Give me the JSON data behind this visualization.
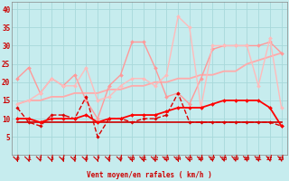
{
  "xlabel": "Vent moyen/en rafales ( km/h )",
  "xlim_min": -0.5,
  "xlim_max": 23.5,
  "ylim_min": 0,
  "ylim_max": 42,
  "yticks": [
    5,
    10,
    15,
    20,
    25,
    30,
    35,
    40
  ],
  "xticks": [
    0,
    1,
    2,
    3,
    4,
    5,
    6,
    7,
    8,
    9,
    10,
    11,
    12,
    13,
    14,
    15,
    16,
    17,
    18,
    19,
    20,
    21,
    22,
    23
  ],
  "background_color": "#c6ecee",
  "grid_color": "#a8d8da",
  "lines": [
    {
      "y": [
        14,
        15,
        15,
        16,
        16,
        17,
        17,
        17,
        18,
        18,
        19,
        19,
        20,
        20,
        21,
        21,
        22,
        22,
        23,
        23,
        25,
        26,
        27,
        28
      ],
      "color": "#ffaaaa",
      "lw": 1.3,
      "marker": null,
      "ms": 0,
      "ls": "-"
    },
    {
      "y": [
        21,
        24,
        17,
        21,
        19,
        22,
        15,
        10,
        19,
        22,
        31,
        31,
        24,
        16,
        17,
        14,
        21,
        29,
        30,
        30,
        30,
        30,
        31,
        28
      ],
      "color": "#ff9999",
      "lw": 1.0,
      "marker": "D",
      "ms": 2.0,
      "ls": "-"
    },
    {
      "y": [
        14,
        15,
        17,
        21,
        19,
        19,
        24,
        15,
        16,
        19,
        21,
        21,
        19,
        22,
        38,
        35,
        13,
        30,
        30,
        30,
        30,
        19,
        32,
        13
      ],
      "color": "#ffbbbb",
      "lw": 1.0,
      "marker": "D",
      "ms": 2.0,
      "ls": "-"
    },
    {
      "y": [
        9,
        9,
        9,
        9,
        9,
        9,
        9,
        9,
        9,
        9,
        9,
        9,
        9,
        9,
        9,
        9,
        9,
        9,
        9,
        9,
        9,
        9,
        9,
        9
      ],
      "color": "#cc0000",
      "lw": 1.2,
      "marker": null,
      "ms": 0,
      "ls": "-"
    },
    {
      "y": [
        13,
        9,
        8,
        11,
        11,
        10,
        16,
        5,
        10,
        10,
        9,
        10,
        10,
        11,
        17,
        9,
        9,
        9,
        9,
        9,
        9,
        9,
        9,
        8
      ],
      "color": "#dd0000",
      "lw": 1.0,
      "marker": "D",
      "ms": 1.8,
      "ls": "--"
    },
    {
      "y": [
        10,
        10,
        9,
        10,
        10,
        10,
        11,
        9,
        10,
        10,
        11,
        11,
        11,
        12,
        13,
        13,
        13,
        14,
        15,
        15,
        15,
        15,
        13,
        8
      ],
      "color": "#ff0000",
      "lw": 1.3,
      "marker": "D",
      "ms": 2.0,
      "ls": "-"
    }
  ],
  "arrow_angles": [
    90,
    80,
    70,
    80,
    75,
    90,
    85,
    90,
    80,
    80,
    75,
    75,
    75,
    90,
    80,
    80,
    60,
    50,
    50,
    45,
    45,
    45,
    40,
    40
  ]
}
